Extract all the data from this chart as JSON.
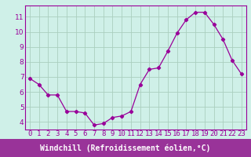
{
  "x": [
    0,
    1,
    2,
    3,
    4,
    5,
    6,
    7,
    8,
    9,
    10,
    11,
    12,
    13,
    14,
    15,
    16,
    17,
    18,
    19,
    20,
    21,
    22,
    23
  ],
  "y": [
    6.9,
    6.5,
    5.8,
    5.8,
    4.7,
    4.7,
    4.6,
    3.8,
    3.9,
    4.3,
    4.4,
    4.7,
    6.5,
    7.5,
    7.6,
    8.7,
    9.9,
    10.8,
    11.3,
    11.3,
    10.5,
    9.5,
    8.1,
    7.2
  ],
  "xlim": [
    -0.5,
    23.5
  ],
  "ylim": [
    3.5,
    11.75
  ],
  "yticks": [
    4,
    5,
    6,
    7,
    8,
    9,
    10,
    11
  ],
  "xticks": [
    0,
    1,
    2,
    3,
    4,
    5,
    6,
    7,
    8,
    9,
    10,
    11,
    12,
    13,
    14,
    15,
    16,
    17,
    18,
    19,
    20,
    21,
    22,
    23
  ],
  "xlabel": "Windchill (Refroidissement éolien,°C)",
  "line_color": "#990099",
  "marker": "D",
  "marker_size": 2.2,
  "bg_color": "#cff0e8",
  "grid_color": "#aacfbf",
  "border_color": "#888888",
  "xlabel_color": "#ffffff",
  "xlabel_bg": "#993399",
  "tick_fontsize": 6.5,
  "xlabel_fontsize": 7.0
}
